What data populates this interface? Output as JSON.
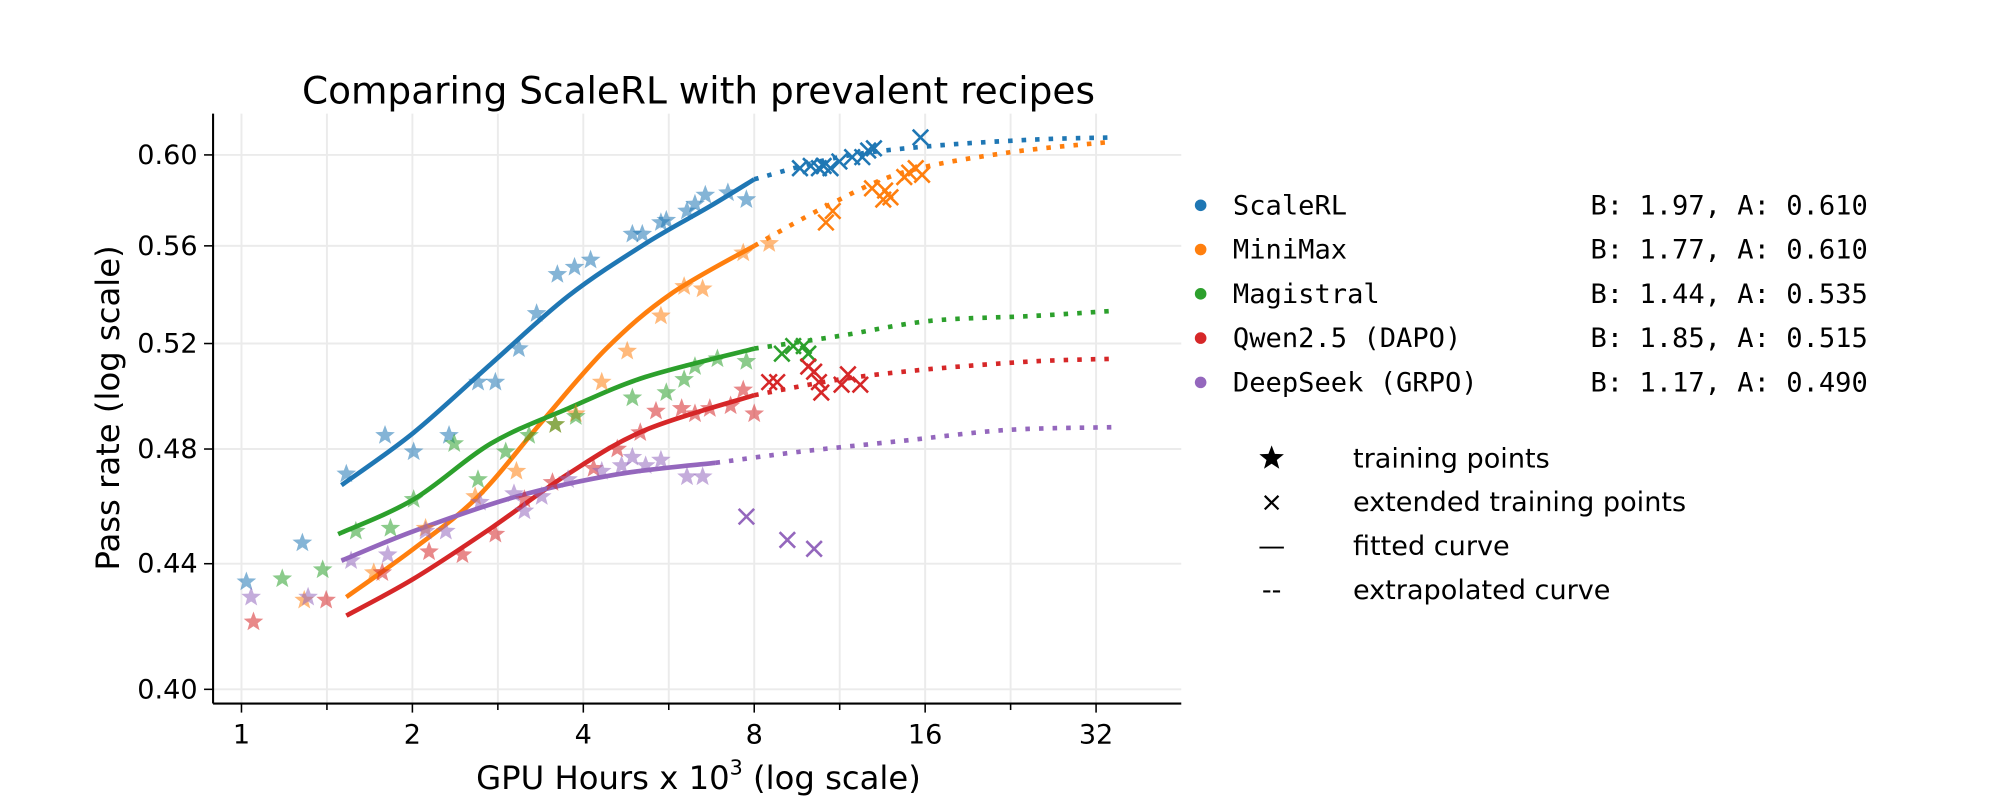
{
  "chart_data": {
    "type": "line",
    "title": "Comparing ScaleRL with prevalent recipes",
    "xlabel": "GPU Hours x 10",
    "xlabel_sup": "3",
    "xlabel_suffix": " (log scale)",
    "ylabel": "Pass rate (log scale)",
    "xscale": "log2",
    "yscale": "log",
    "xlim": [
      0.89,
      45
    ],
    "ylim": [
      0.396,
      0.619
    ],
    "xticks": [
      "1",
      "2",
      "4",
      "8",
      "16",
      "32"
    ],
    "xtick_values": [
      1,
      2,
      4,
      8,
      16,
      32
    ],
    "yticks": [
      "0.40",
      "0.44",
      "0.48",
      "0.52",
      "0.56",
      "0.60"
    ],
    "ytick_values": [
      0.4,
      0.44,
      0.48,
      0.52,
      0.56,
      0.6
    ],
    "grid": true,
    "legend_position": "right",
    "series": [
      {
        "name": "ScaleRL",
        "params": "B: 1.97, A: 0.610",
        "color": "#1f77b4",
        "fitted": [
          [
            1.5,
            0.467
          ],
          [
            2.01,
            0.486
          ],
          [
            2.75,
            0.512
          ],
          [
            3.76,
            0.539
          ],
          [
            5.15,
            0.561
          ],
          [
            6.68,
            0.577
          ],
          [
            8.0,
            0.589
          ]
        ],
        "extrapolated": [
          [
            8.0,
            0.589
          ],
          [
            11.3,
            0.599
          ],
          [
            16.3,
            0.604
          ],
          [
            24.8,
            0.607
          ],
          [
            34.1,
            0.608
          ]
        ],
        "training_points": [
          [
            1.02,
            0.434
          ],
          [
            1.28,
            0.447
          ],
          [
            1.53,
            0.471
          ],
          [
            1.79,
            0.485
          ],
          [
            2.01,
            0.479
          ],
          [
            2.32,
            0.485
          ],
          [
            2.61,
            0.505
          ],
          [
            2.8,
            0.505
          ],
          [
            3.08,
            0.518
          ],
          [
            3.31,
            0.532
          ],
          [
            3.6,
            0.548
          ],
          [
            3.86,
            0.551
          ],
          [
            4.12,
            0.554
          ],
          [
            4.88,
            0.565
          ],
          [
            5.08,
            0.565
          ],
          [
            5.48,
            0.57
          ],
          [
            5.6,
            0.571
          ],
          [
            6.09,
            0.575
          ],
          [
            6.29,
            0.578
          ],
          [
            6.56,
            0.582
          ],
          [
            7.19,
            0.583
          ],
          [
            7.75,
            0.58
          ]
        ],
        "extended_points": [
          [
            9.63,
            0.594
          ],
          [
            10.06,
            0.595
          ],
          [
            10.4,
            0.594
          ],
          [
            10.6,
            0.595
          ],
          [
            10.9,
            0.594
          ],
          [
            11.3,
            0.597
          ],
          [
            11.9,
            0.599
          ],
          [
            12.4,
            0.599
          ],
          [
            12.7,
            0.602
          ],
          [
            13.0,
            0.603
          ],
          [
            15.7,
            0.608
          ]
        ]
      },
      {
        "name": "MiniMax",
        "params": "B: 1.77, A: 0.610",
        "color": "#ff7f0e",
        "fitted": [
          [
            1.53,
            0.429
          ],
          [
            2.01,
            0.445
          ],
          [
            2.61,
            0.463
          ],
          [
            3.38,
            0.49
          ],
          [
            4.39,
            0.518
          ],
          [
            5.71,
            0.54
          ],
          [
            8.0,
            0.56
          ]
        ],
        "extrapolated": [
          [
            8.0,
            0.56
          ],
          [
            10.7,
            0.577
          ],
          [
            14.6,
            0.592
          ],
          [
            22.3,
            0.601
          ],
          [
            34.1,
            0.606
          ]
        ],
        "training_points": [
          [
            1.29,
            0.428
          ],
          [
            1.71,
            0.437
          ],
          [
            2.11,
            0.452
          ],
          [
            2.58,
            0.463
          ],
          [
            3.05,
            0.472
          ],
          [
            3.57,
            0.489
          ],
          [
            3.88,
            0.493
          ],
          [
            4.31,
            0.505
          ],
          [
            4.78,
            0.517
          ],
          [
            5.48,
            0.531
          ],
          [
            6.02,
            0.543
          ],
          [
            6.49,
            0.542
          ],
          [
            7.65,
            0.557
          ],
          [
            8.5,
            0.561
          ]
        ],
        "extended_points": [
          [
            10.7,
            0.57
          ],
          [
            11.0,
            0.575
          ],
          [
            12.9,
            0.585
          ],
          [
            13.6,
            0.584
          ],
          [
            13.5,
            0.58
          ],
          [
            13.9,
            0.581
          ],
          [
            15.0,
            0.592
          ],
          [
            15.4,
            0.594
          ],
          [
            15.8,
            0.591
          ],
          [
            14.7,
            0.59
          ]
        ]
      },
      {
        "name": "Magistral",
        "params": "B: 1.44, A: 0.535",
        "color": "#2ca02c",
        "fitted": [
          [
            1.48,
            0.45
          ],
          [
            2.01,
            0.462
          ],
          [
            2.75,
            0.482
          ],
          [
            3.76,
            0.495
          ],
          [
            5.15,
            0.507
          ],
          [
            8.0,
            0.518
          ]
        ],
        "extrapolated": [
          [
            8.0,
            0.518
          ],
          [
            11.3,
            0.523
          ],
          [
            16.3,
            0.529
          ],
          [
            24.8,
            0.531
          ],
          [
            34.1,
            0.533
          ]
        ],
        "training_points": [
          [
            1.18,
            0.435
          ],
          [
            1.39,
            0.438
          ],
          [
            1.59,
            0.451
          ],
          [
            1.83,
            0.452
          ],
          [
            2.01,
            0.462
          ],
          [
            2.37,
            0.482
          ],
          [
            2.61,
            0.469
          ],
          [
            2.92,
            0.479
          ],
          [
            3.21,
            0.485
          ],
          [
            3.57,
            0.489
          ],
          [
            3.88,
            0.492
          ],
          [
            4.88,
            0.499
          ],
          [
            5.6,
            0.501
          ],
          [
            6.02,
            0.506
          ],
          [
            6.29,
            0.511
          ],
          [
            6.89,
            0.514
          ],
          [
            7.75,
            0.513
          ]
        ],
        "extended_points": [
          [
            8.95,
            0.516
          ],
          [
            9.37,
            0.519
          ],
          [
            9.78,
            0.519
          ],
          [
            9.96,
            0.516
          ]
        ]
      },
      {
        "name": "Qwen2.5 (DAPO)",
        "params": "B: 1.85, A: 0.515",
        "color": "#d62728",
        "fitted": [
          [
            1.53,
            0.423
          ],
          [
            2.01,
            0.435
          ],
          [
            2.75,
            0.452
          ],
          [
            3.76,
            0.471
          ],
          [
            5.15,
            0.487
          ],
          [
            8.0,
            0.5
          ]
        ],
        "extrapolated": [
          [
            8.0,
            0.5
          ],
          [
            11.3,
            0.506
          ],
          [
            16.3,
            0.51
          ],
          [
            24.8,
            0.513
          ],
          [
            34.1,
            0.514
          ]
        ],
        "training_points": [
          [
            1.05,
            0.421
          ],
          [
            1.41,
            0.428
          ],
          [
            1.77,
            0.437
          ],
          [
            2.14,
            0.444
          ],
          [
            2.45,
            0.443
          ],
          [
            2.8,
            0.45
          ],
          [
            3.15,
            0.462
          ],
          [
            3.53,
            0.468
          ],
          [
            4.17,
            0.473
          ],
          [
            4.59,
            0.48
          ],
          [
            5.04,
            0.486
          ],
          [
            5.37,
            0.494
          ],
          [
            5.96,
            0.495
          ],
          [
            6.29,
            0.493
          ],
          [
            6.68,
            0.495
          ],
          [
            7.27,
            0.496
          ],
          [
            7.65,
            0.502
          ],
          [
            8.0,
            0.493
          ]
        ],
        "extended_points": [
          [
            8.5,
            0.505
          ],
          [
            8.78,
            0.505
          ],
          [
            9.96,
            0.511
          ],
          [
            10.2,
            0.509
          ],
          [
            10.4,
            0.505
          ],
          [
            10.5,
            0.501
          ],
          [
            11.4,
            0.504
          ],
          [
            12.3,
            0.504
          ],
          [
            11.7,
            0.508
          ]
        ]
      },
      {
        "name": "DeepSeek (GRPO)",
        "params": "B: 1.17, A: 0.490",
        "color": "#9467bd",
        "fitted": [
          [
            1.5,
            0.441
          ],
          [
            2.01,
            0.451
          ],
          [
            3.05,
            0.463
          ],
          [
            4.63,
            0.471
          ],
          [
            6.84,
            0.475
          ]
        ],
        "extrapolated": [
          [
            6.84,
            0.475
          ],
          [
            9.6,
            0.479
          ],
          [
            14.6,
            0.483
          ],
          [
            22.3,
            0.487
          ],
          [
            34.1,
            0.488
          ]
        ],
        "training_points": [
          [
            1.04,
            0.429
          ],
          [
            1.31,
            0.429
          ],
          [
            1.56,
            0.441
          ],
          [
            1.81,
            0.443
          ],
          [
            2.11,
            0.451
          ],
          [
            2.29,
            0.451
          ],
          [
            2.63,
            0.461
          ],
          [
            3.02,
            0.464
          ],
          [
            3.15,
            0.458
          ],
          [
            3.38,
            0.463
          ],
          [
            3.76,
            0.469
          ],
          [
            4.31,
            0.472
          ],
          [
            4.67,
            0.474
          ],
          [
            4.88,
            0.477
          ],
          [
            5.15,
            0.474
          ],
          [
            5.48,
            0.476
          ],
          [
            6.09,
            0.47
          ],
          [
            6.49,
            0.47
          ]
        ],
        "extended_points": [
          [
            7.75,
            0.456
          ],
          [
            9.15,
            0.448
          ],
          [
            10.2,
            0.445
          ]
        ]
      }
    ],
    "marker_legend": [
      {
        "symbol": "star",
        "label": "training points"
      },
      {
        "symbol": "×",
        "label": "extended training points"
      },
      {
        "symbol": "—",
        "label": "fitted curve"
      },
      {
        "symbol": "--",
        "label": "extrapolated curve"
      }
    ]
  }
}
